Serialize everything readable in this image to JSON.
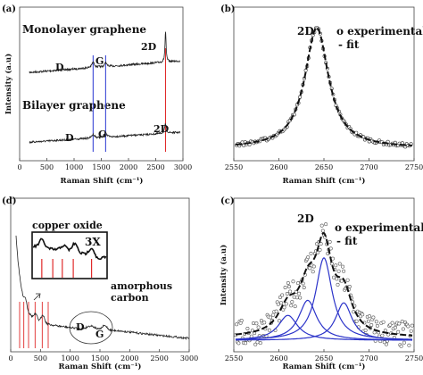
{
  "chart_data": [
    {
      "panel": "(a)",
      "type": "line",
      "xlabel": "Raman Shift (cm⁻¹)",
      "ylabel": "Intensity (a.u)",
      "xlim": [
        0,
        3000
      ],
      "xticks": [
        "0",
        "500",
        "1000",
        "1500",
        "2000",
        "2500",
        "3000"
      ],
      "series": [
        {
          "name": "Monolayer graphene",
          "peaks": [
            {
              "label": "D",
              "x": 1350
            },
            {
              "label": "G",
              "x": 1580
            },
            {
              "label": "2D",
              "x": 2680
            }
          ]
        },
        {
          "name": "Bilayer graphene",
          "peaks": [
            {
              "label": "D",
              "x": 1350
            },
            {
              "label": "G",
              "x": 1580
            },
            {
              "label": "2D",
              "x": 2680
            }
          ]
        }
      ],
      "marker_lines": [
        {
          "x": 1350,
          "color": "#3a47d6"
        },
        {
          "x": 1580,
          "color": "#3a47d6"
        },
        {
          "x": 2680,
          "color": "#e02a2a"
        }
      ]
    },
    {
      "panel": "(b)",
      "type": "scatter",
      "xlabel": "Raman Shift (cm⁻¹)",
      "xlim": [
        2550,
        2750
      ],
      "xticks": [
        "2550",
        "2600",
        "2650",
        "2700",
        "2750"
      ],
      "title": "2D",
      "legend": [
        "o experimental",
        "- fit"
      ],
      "peak_center": 2642,
      "peak_fwhm": 32
    },
    {
      "panel": "(d)",
      "type": "line",
      "xlabel": "Raman Shift (cm⁻¹)",
      "xlim": [
        0,
        3000
      ],
      "xticks": [
        "0",
        "500",
        "1000",
        "1500",
        "2000",
        "2500",
        "3000"
      ],
      "inset_title": "copper oxide",
      "inset_mag": "3X",
      "region_label": "amorphous carbon",
      "peaks": [
        {
          "label": "D",
          "x": 1350
        },
        {
          "label": "G",
          "x": 1580
        }
      ],
      "red_lines_x": [
        150,
        220,
        300,
        410,
        530,
        630
      ]
    },
    {
      "panel": "(c)",
      "type": "scatter",
      "xlabel": "Raman Shift (cm⁻¹)",
      "ylabel": "Intensity (a.u)",
      "xlim": [
        2550,
        2750
      ],
      "xticks": [
        "2550",
        "2600",
        "2650",
        "2700",
        "2750"
      ],
      "title": "2D",
      "legend": [
        "o experimental",
        "- fit"
      ],
      "components": [
        {
          "center": 2610,
          "fwhm": 26,
          "amp": 0.2
        },
        {
          "center": 2632,
          "fwhm": 24,
          "amp": 0.32
        },
        {
          "center": 2650,
          "fwhm": 22,
          "amp": 0.66
        },
        {
          "center": 2672,
          "fwhm": 22,
          "amp": 0.3
        }
      ]
    }
  ]
}
